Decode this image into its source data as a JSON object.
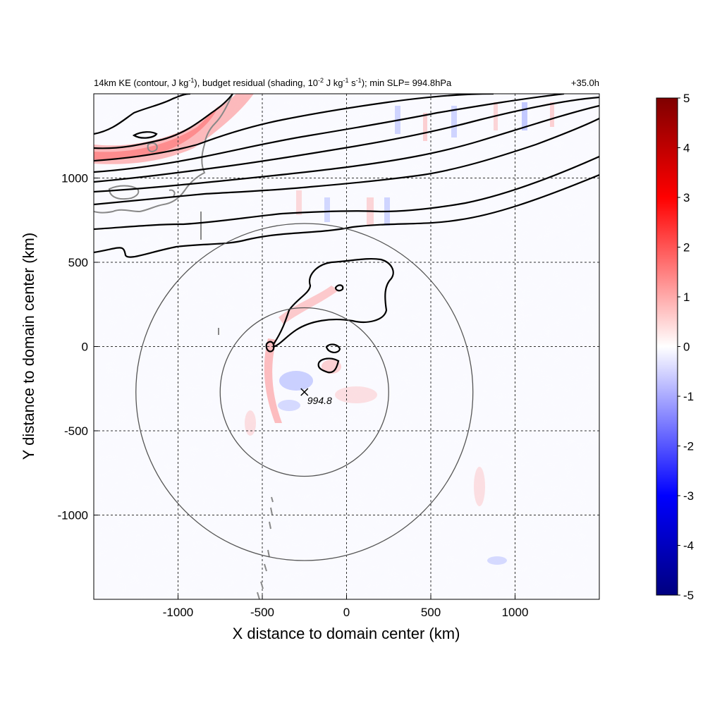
{
  "chart_data": {
    "type": "heatmap",
    "title_main": "14km KE (contour, J kg",
    "title_sup1": "-1",
    "title_mid1": "), budget residual (shading, 10",
    "title_sup2": "-2",
    "title_mid2": " J kg",
    "title_sup3": "-1",
    "title_mid3": " s",
    "title_sup4": "-1",
    "title_end": "); min SLP= 994.8hPa",
    "time_label": "+35.0h",
    "xlabel": "X distance to domain center (km)",
    "ylabel": "Y distance to domain center (km)",
    "xlim": [
      -1500,
      1500
    ],
    "ylim": [
      -1500,
      1500
    ],
    "xticks": [
      -1000,
      -500,
      0,
      500,
      1000
    ],
    "yticks": [
      1000,
      500,
      0,
      -500,
      -1000
    ],
    "xtick_labels": [
      "-1000",
      "-500",
      "0",
      "500",
      "1000"
    ],
    "ytick_labels": [
      "1000",
      "500",
      "0",
      "-500",
      "-1000"
    ],
    "grid": true,
    "colorbar": {
      "range": [
        -5,
        5
      ],
      "ticks": [
        5,
        4,
        3,
        2,
        1,
        0,
        -1,
        -2,
        -3,
        -4,
        -5
      ],
      "tick_labels": [
        "5",
        "4",
        "3",
        "2",
        "1",
        "0",
        "-1",
        "-2",
        "-3",
        "-4",
        "-5"
      ],
      "colormap": [
        "#00007f",
        "#0000ff",
        "#ffffff",
        "#ff0000",
        "#7f0000"
      ]
    },
    "storm_center": {
      "x": -250,
      "y": -270,
      "slp_label": "994.8"
    },
    "range_circles": [
      {
        "cx": -250,
        "cy": -270,
        "r": 500
      },
      {
        "cx": -250,
        "cy": -270,
        "r": 1000
      }
    ]
  }
}
